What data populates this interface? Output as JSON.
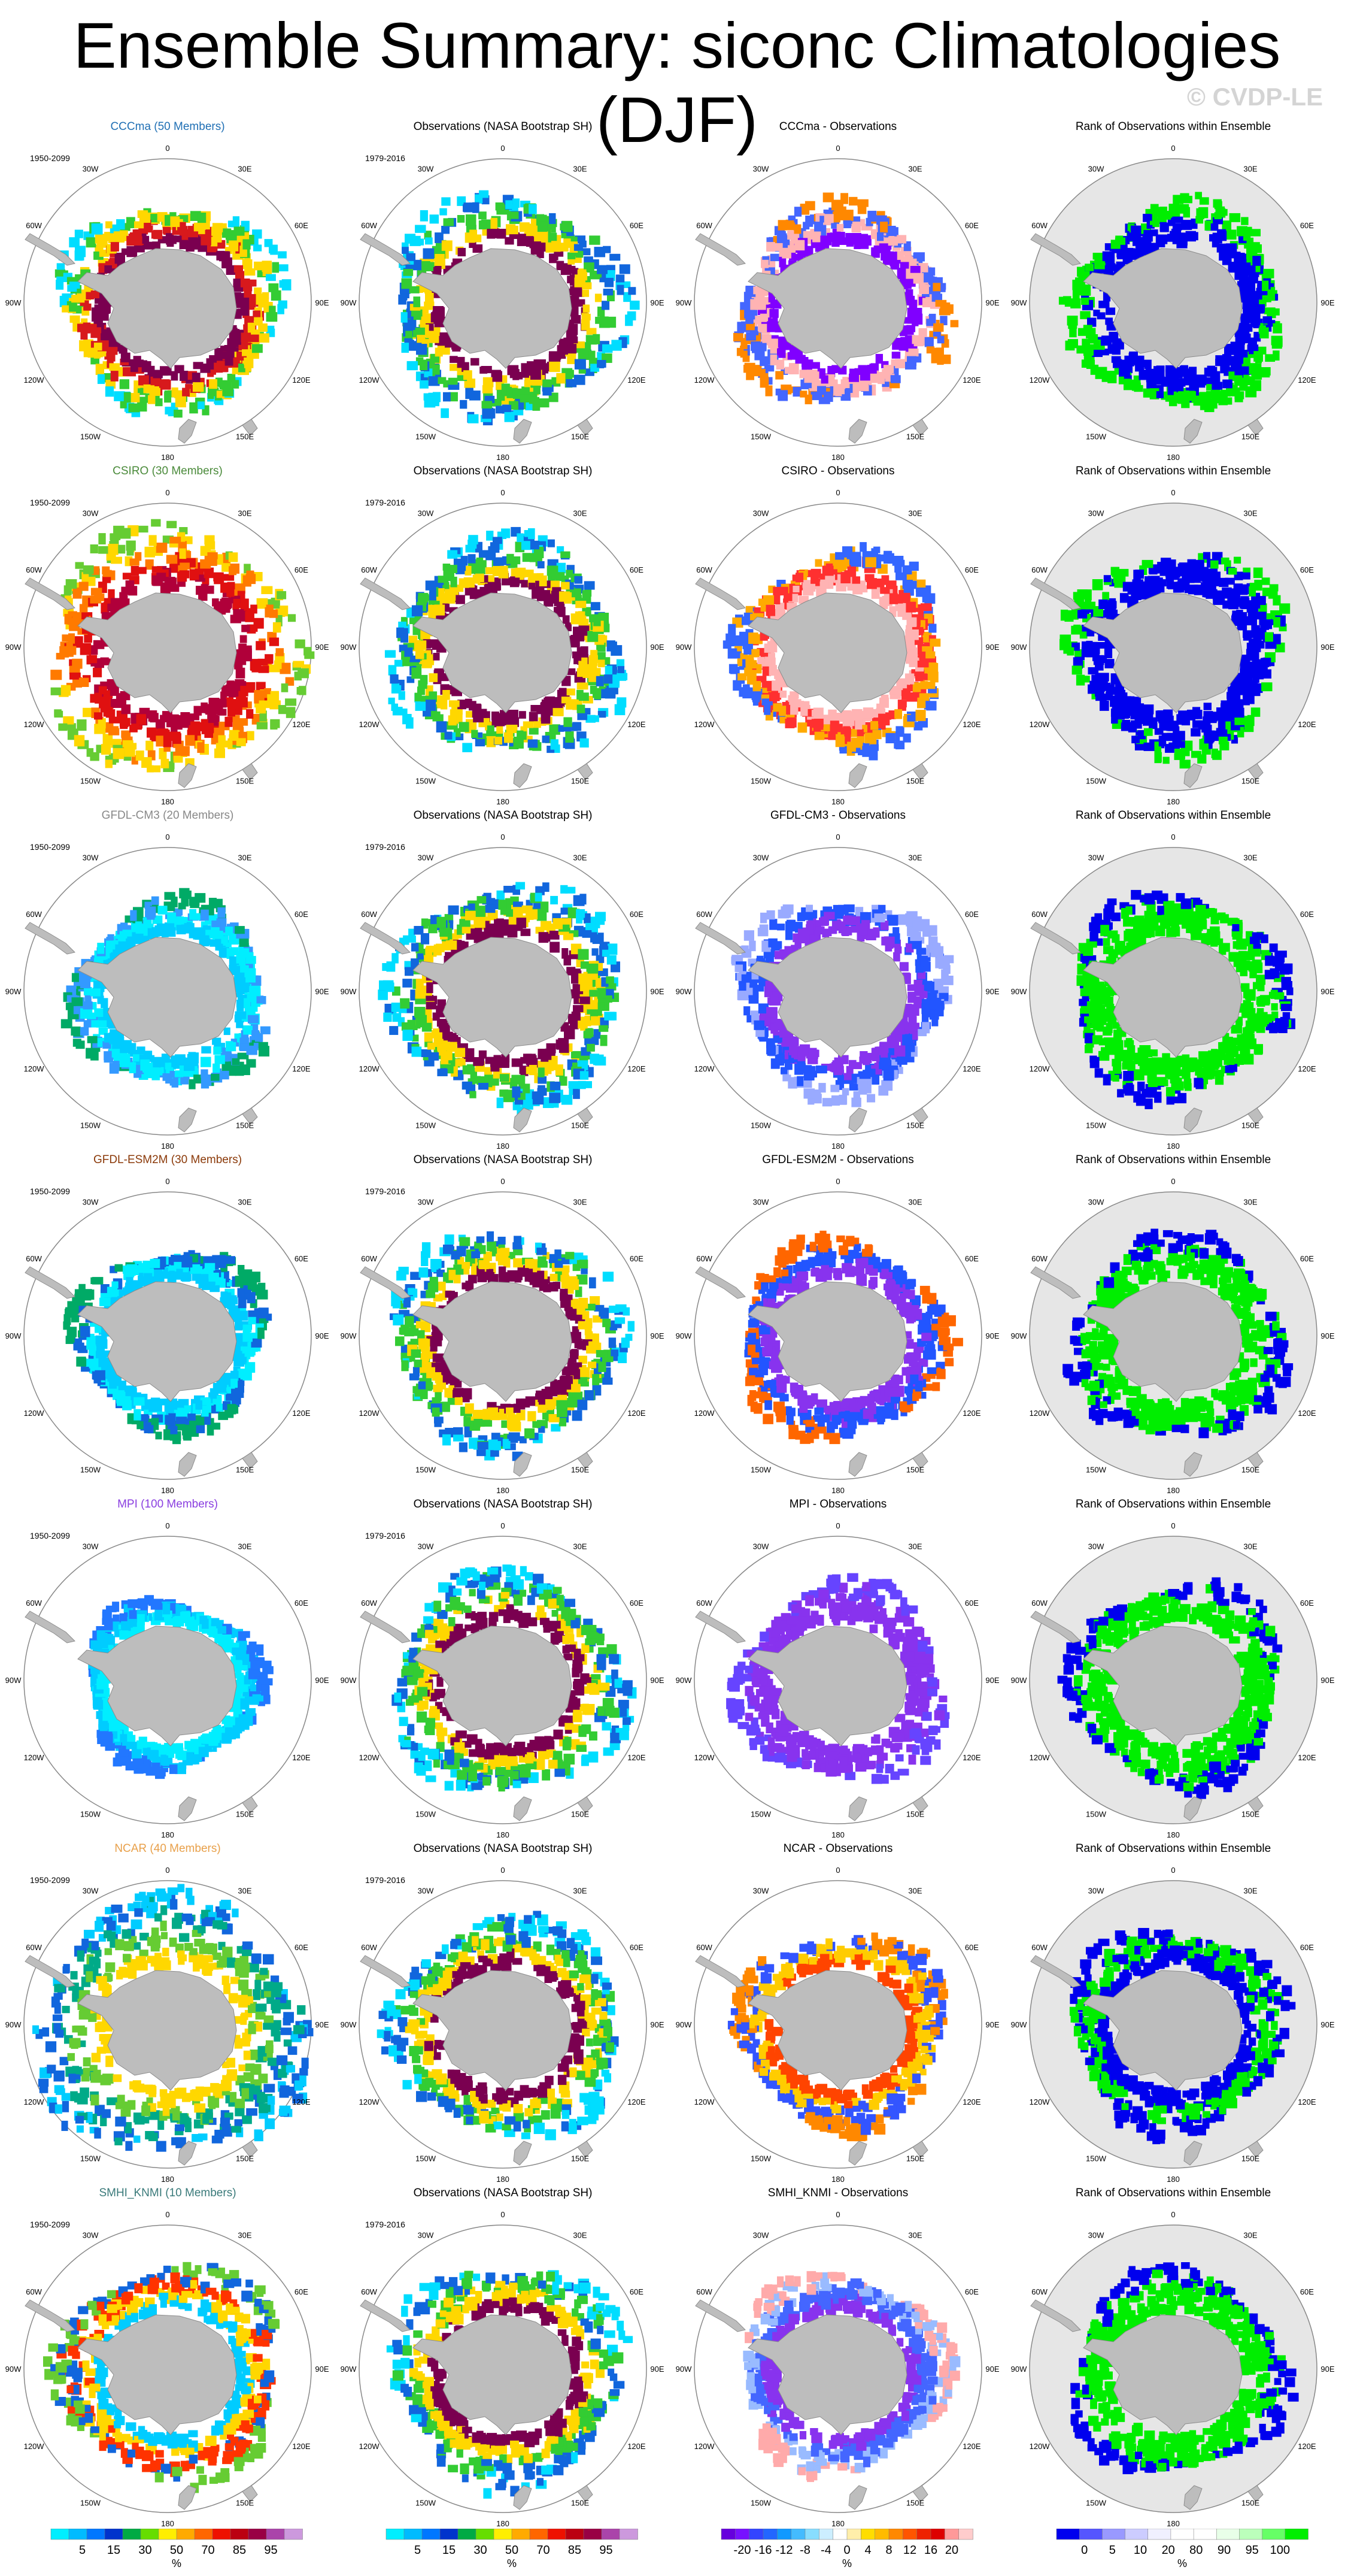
{
  "title": "Ensemble Summary: siconc Climatologies (DJF)",
  "watermark": "© CVDP-LE",
  "lon_labels": [
    "0",
    "30E",
    "60E",
    "90E",
    "120E",
    "150E",
    "180",
    "150W",
    "120W",
    "90W",
    "60W",
    "30W"
  ],
  "rows": [
    {
      "model_title": "CCCma (50 Members)",
      "model_color": "#1f6fb4",
      "model_period": "1950-2099",
      "obs_title": "Observations (NASA Bootstrap SH)",
      "obs_period": "1979-2016",
      "diff_title": "CCCma - Observations",
      "rank_title": "Rank of Observations within Ensemble",
      "model_ice": {
        "inner": 110,
        "outer": 185,
        "colors": [
          "#7a0050",
          "#d7191c",
          "#ffd700",
          "#33cc33",
          "#00ddff"
        ]
      },
      "diff_ice": {
        "colors": [
          "#8000ff",
          "#ffb3b3",
          "#4466ff",
          "#ff8800"
        ]
      },
      "rank_ice": {
        "colors": [
          "#0000ee",
          "#00ee00"
        ]
      }
    },
    {
      "model_title": "CSIRO (30 Members)",
      "model_color": "#4a8a3a",
      "model_period": "1950-2099",
      "obs_title": "Observations (NASA Bootstrap SH)",
      "obs_period": "1979-2016",
      "diff_title": "CSIRO - Observations",
      "rank_title": "Rank of Observations within Ensemble",
      "model_ice": {
        "inner": 110,
        "outer": 215,
        "colors": [
          "#b0003a",
          "#e01010",
          "#ff7a00",
          "#ffd700",
          "#66cc33"
        ]
      },
      "diff_ice": {
        "colors": [
          "#ffb3b3",
          "#ff3030",
          "#ffaa00",
          "#3366ff"
        ]
      },
      "rank_ice": {
        "colors": [
          "#0000ee",
          "#0000ee",
          "#00ee00"
        ]
      }
    },
    {
      "model_title": "GFDL-CM3 (20 Members)",
      "model_color": "#888888",
      "model_period": "1950-2099",
      "obs_title": "Observations (NASA Bootstrap SH)",
      "obs_period": "1979-2016",
      "diff_title": "GFDL-CM3 - Observations",
      "rank_title": "Rank of Observations within Ensemble",
      "model_ice": {
        "inner": 110,
        "outer": 165,
        "colors": [
          "#00ccff",
          "#00eeff",
          "#3399ff",
          "#00aa66"
        ]
      },
      "diff_ice": {
        "colors": [
          "#8833ee",
          "#2255ff",
          "#99aaff"
        ]
      },
      "rank_ice": {
        "colors": [
          "#00ee00",
          "#00ee00",
          "#0000ee"
        ]
      }
    },
    {
      "model_title": "GFDL-ESM2M (30 Members)",
      "model_color": "#8b3a0a",
      "model_period": "1950-2099",
      "obs_title": "Observations (NASA Bootstrap SH)",
      "obs_period": "1979-2016",
      "diff_title": "GFDL-ESM2M - Observations",
      "rank_title": "Rank of Observations within Ensemble",
      "model_ice": {
        "inner": 110,
        "outer": 160,
        "colors": [
          "#00ccff",
          "#00eeff",
          "#1166dd",
          "#00aa66"
        ]
      },
      "diff_ice": {
        "colors": [
          "#8833ee",
          "#2255ff",
          "#ff6600"
        ]
      },
      "rank_ice": {
        "colors": [
          "#00ee00",
          "#00ee00",
          "#0000ee"
        ]
      }
    },
    {
      "model_title": "MPI (100 Members)",
      "model_color": "#8a3ee0",
      "model_period": "1950-2099",
      "obs_title": "Observations (NASA Bootstrap SH)",
      "obs_period": "1979-2016",
      "diff_title": "MPI - Observations",
      "rank_title": "Rank of Observations within Ensemble",
      "model_ice": {
        "inner": 110,
        "outer": 148,
        "colors": [
          "#00eeff",
          "#00ccff",
          "#2277ff"
        ]
      },
      "diff_ice": {
        "colors": [
          "#8833ee",
          "#8833ee",
          "#6644ff"
        ]
      },
      "rank_ice": {
        "colors": [
          "#00ee00",
          "#00ee00",
          "#0000ee"
        ]
      }
    },
    {
      "model_title": "NCAR (40 Members)",
      "model_color": "#e8a04a",
      "model_period": "1950-2099",
      "obs_title": "Observations (NASA Bootstrap SH)",
      "obs_period": "1979-2016",
      "diff_title": "NCAR - Observations",
      "rank_title": "Rank of Observations within Ensemble",
      "model_ice": {
        "inner": 110,
        "outer": 230,
        "colors": [
          "#ffd700",
          "#66cc33",
          "#00aa88",
          "#1166dd",
          "#00ccff"
        ]
      },
      "diff_ice": {
        "colors": [
          "#ff4400",
          "#ffcc00",
          "#3355ff",
          "#ff8800"
        ]
      },
      "rank_ice": {
        "colors": [
          "#0000ee",
          "#00ee00",
          "#0000ee"
        ]
      }
    },
    {
      "model_title": "SMHI_KNMI (10 Members)",
      "model_color": "#3a7a7a",
      "model_period": "1950-2099",
      "obs_title": "Observations (NASA Bootstrap SH)",
      "obs_period": "1979-2016",
      "diff_title": "SMHI_KNMI - Observations",
      "rank_title": "Rank of Observations within Ensemble",
      "model_ice": {
        "inner": 110,
        "outer": 190,
        "colors": [
          "#00ccff",
          "#ffd700",
          "#ff3300",
          "#1166dd",
          "#66cc33"
        ]
      },
      "diff_ice": {
        "colors": [
          "#8833ee",
          "#4466ff",
          "#99bbff",
          "#ffaaaa"
        ]
      },
      "rank_ice": {
        "colors": [
          "#00ee00",
          "#00ee00",
          "#0000ee"
        ]
      }
    }
  ],
  "obs_ice": {
    "inner": 110,
    "outer": 195,
    "colors": [
      "#7a0050",
      "#ffd700",
      "#33cc33",
      "#1166dd",
      "#00ddff"
    ]
  },
  "colorbars": [
    {
      "name": "model-obs-colorbar",
      "colors": [
        "#00eeff",
        "#00bbff",
        "#0077ff",
        "#0033cc",
        "#00aa44",
        "#66dd00",
        "#ffee00",
        "#ffaa00",
        "#ff6600",
        "#ee1100",
        "#bb0011",
        "#990044",
        "#aa44aa",
        "#cc99dd"
      ],
      "tick_labels": [
        "5",
        "15",
        "30",
        "50",
        "70",
        "85",
        "95"
      ],
      "unit": "%"
    },
    {
      "name": "model-obs-colorbar-2",
      "colors": [
        "#00eeff",
        "#00bbff",
        "#0077ff",
        "#0033cc",
        "#00aa44",
        "#66dd00",
        "#ffee00",
        "#ffaa00",
        "#ff6600",
        "#ee1100",
        "#bb0011",
        "#990044",
        "#aa44aa",
        "#cc99dd"
      ],
      "tick_labels": [
        "5",
        "15",
        "30",
        "50",
        "70",
        "85",
        "95"
      ],
      "unit": "%"
    },
    {
      "name": "difference-colorbar",
      "colors": [
        "#6600dd",
        "#7711ff",
        "#3344ff",
        "#2266ff",
        "#1199ff",
        "#44bbff",
        "#88ddff",
        "#cceeff",
        "#ffffff",
        "#ffeeaa",
        "#ffdd00",
        "#ffbb00",
        "#ff8800",
        "#ff5500",
        "#ee2200",
        "#dd0000",
        "#ff9999",
        "#ffcccc"
      ],
      "tick_labels": [
        "-20",
        "-16",
        "-12",
        "-8",
        "-4",
        "0",
        "4",
        "8",
        "12",
        "16",
        "20"
      ],
      "unit": "%"
    },
    {
      "name": "rank-colorbar",
      "colors": [
        "#0000ee",
        "#5555ff",
        "#9999ff",
        "#ccccff",
        "#f0f0ff",
        "#ffffff",
        "#ffffff",
        "#e8ffe8",
        "#bbffbb",
        "#66ff66",
        "#00ee00"
      ],
      "tick_labels": [
        "0",
        "5",
        "10",
        "20",
        "80",
        "90",
        "95",
        "100"
      ],
      "unit": "%"
    }
  ]
}
